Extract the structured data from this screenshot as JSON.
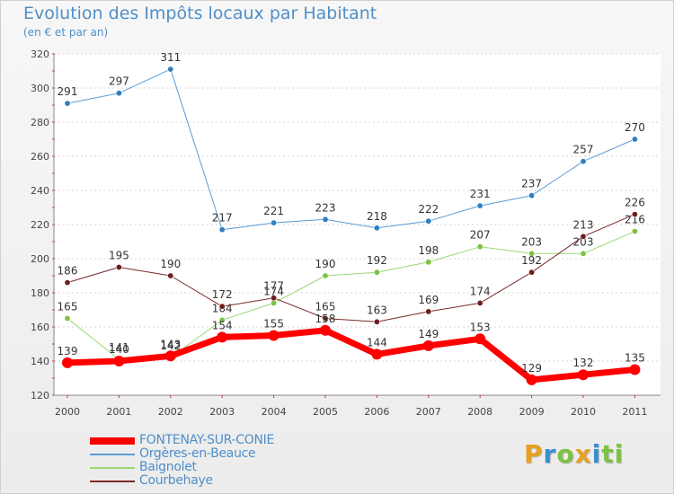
{
  "header": {
    "title": "Evolution des Impôts locaux par Habitant",
    "subtitle": "(en € et par an)"
  },
  "logo": {
    "text": "Proxiti",
    "letters": [
      "P",
      "r",
      "o",
      "x",
      "i",
      "ti"
    ]
  },
  "chart_data": {
    "type": "line",
    "x": [
      "2000",
      "2001",
      "2002",
      "2003",
      "2004",
      "2005",
      "2006",
      "2007",
      "2008",
      "2009",
      "2010",
      "2011"
    ],
    "ylim": [
      120,
      320
    ],
    "yticks": [
      120,
      140,
      160,
      180,
      200,
      220,
      240,
      260,
      280,
      300,
      320
    ],
    "grid": "horizontal dashed",
    "legend_position": "bottom-left",
    "series": [
      {
        "name": "Orgères-en-Beauce",
        "color": "#5b9bd5",
        "marker_color": "#2f7fc1",
        "width": 1,
        "values": [
          291,
          297,
          311,
          217,
          221,
          223,
          218,
          222,
          231,
          237,
          257,
          270
        ]
      },
      {
        "name": "Baignolet",
        "color": "#98d870",
        "marker_color": "#7cc242",
        "width": 1,
        "values": [
          165,
          141,
          142,
          164,
          174,
          190,
          192,
          198,
          207,
          203,
          203,
          216
        ]
      },
      {
        "name": "Courbehaye",
        "color": "#7a2a2a",
        "marker_color": "#6b1f1f",
        "width": 1,
        "values": [
          186,
          195,
          190,
          172,
          177,
          165,
          163,
          169,
          174,
          192,
          213,
          226
        ]
      },
      {
        "name": "FONTENAY-SUR-CONIE",
        "color": "#ff0000",
        "marker_color": "#ff0000",
        "width": 7,
        "values": [
          139,
          140,
          143,
          154,
          155,
          158,
          144,
          149,
          153,
          129,
          132,
          135
        ]
      }
    ],
    "legend_order": [
      "FONTENAY-SUR-CONIE",
      "Orgères-en-Beauce",
      "Baignolet",
      "Courbehaye"
    ]
  }
}
